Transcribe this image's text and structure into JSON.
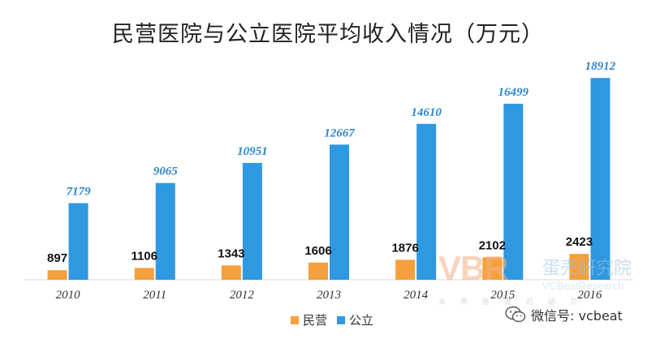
{
  "chart_data": {
    "type": "bar",
    "title": "民营医院与公立医院平均收入情况（万元）",
    "categories": [
      "2010",
      "2011",
      "2012",
      "2013",
      "2014",
      "2015",
      "2016"
    ],
    "series": [
      {
        "name": "民营",
        "color": "#f5a03c",
        "label_color": "#111111",
        "values": [
          897,
          1106,
          1343,
          1606,
          1876,
          2102,
          2423
        ]
      },
      {
        "name": "公立",
        "color": "#2e98e0",
        "label_color": "#2e86c8",
        "values": [
          7179,
          9065,
          10951,
          12667,
          14610,
          16499,
          18912
        ]
      }
    ],
    "xlabel": "",
    "ylabel": "",
    "ylim": [
      0,
      19000
    ],
    "grid": false,
    "legend": "bottom-center"
  },
  "watermark": {
    "logo_text": "VBR",
    "brand_cn": "蛋壳研究院",
    "brand_en": "VCBeatResearch",
    "sub": "未来医健的研究"
  },
  "wechat": {
    "label": "微信号: vcbeat"
  }
}
